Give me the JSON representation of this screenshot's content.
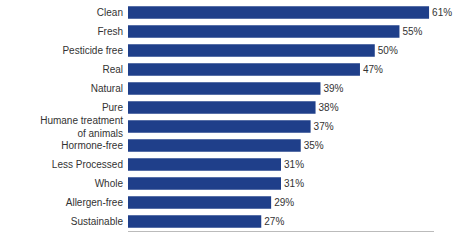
{
  "chart_data": {
    "type": "bar",
    "orientation": "horizontal",
    "categories": [
      "Clean",
      "Fresh",
      "Pesticide free",
      "Real",
      "Natural",
      "Pure",
      "Humane treatment of animals",
      "Hormone-free",
      "Less Processed",
      "Whole",
      "Allergen-free",
      "Sustainable"
    ],
    "values": [
      61,
      55,
      50,
      47,
      39,
      38,
      37,
      35,
      31,
      31,
      29,
      27
    ],
    "value_labels": [
      "61%",
      "55%",
      "50%",
      "47%",
      "39%",
      "38%",
      "37%",
      "35%",
      "31%",
      "31%",
      "29%",
      "27%"
    ],
    "color": "#1f3f8a",
    "xlim": [
      0,
      62
    ],
    "data_labels": true,
    "tick_labels": "y",
    "grid": false
  }
}
